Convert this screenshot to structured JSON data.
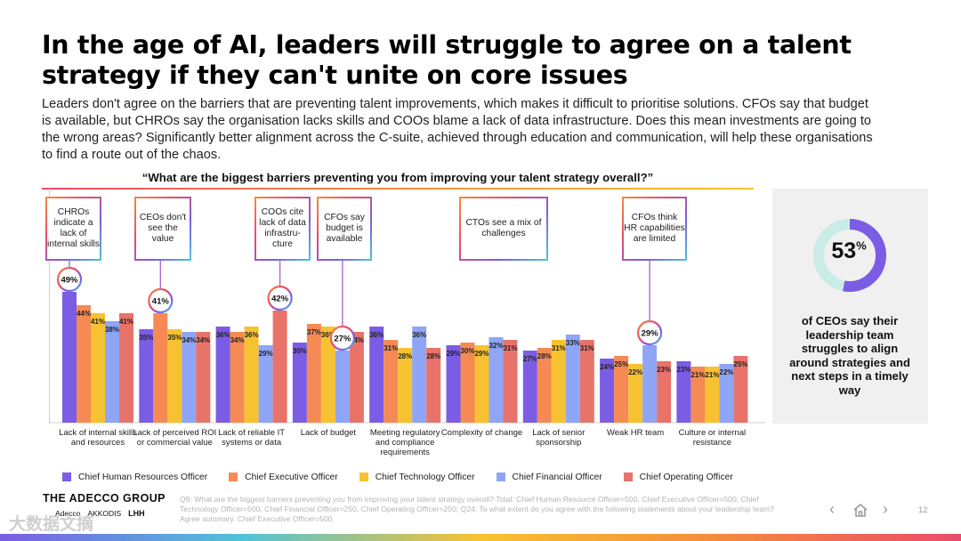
{
  "title": "In the age of AI, leaders will struggle to agree on a talent strategy if they can't unite on core issues",
  "subtitle": "Leaders don't agree on the barriers that are preventing talent improvements, which makes it difficult to prioritise solutions. CFOs say that budget is available, but CHROs say the organisation lacks skills and COOs blame a lack of data infrastructure. Does this mean investments are going to the wrong areas? Significantly better alignment across the C-suite, achieved through education and communication, will help these organisations to find a route out of the chaos.",
  "chart_data": {
    "type": "bar",
    "title": "“What are the biggest barriers preventing you from improving your talent strategy overall?”",
    "categories": [
      "Lack of internal skills and resources",
      "Lack of perceived ROI or commercial value",
      "Lack of reliable IT systems or data",
      "Lack of budget",
      "Meeting regulatory and compliance requirements",
      "Complexity of change",
      "Lack of senior sponsorship",
      "Weak HR team",
      "Culture or internal resistance"
    ],
    "series": [
      {
        "name": "Chief Human Resources Officer",
        "color": "#7b5ce5",
        "values": [
          49,
          35,
          36,
          30,
          36,
          29,
          27,
          24,
          23
        ]
      },
      {
        "name": "Chief Executive Officer",
        "color": "#f58a55",
        "values": [
          44,
          41,
          34,
          37,
          31,
          30,
          28,
          25,
          21
        ]
      },
      {
        "name": "Chief Technology Officer",
        "color": "#f7c232",
        "values": [
          41,
          35,
          36,
          36,
          28,
          29,
          31,
          22,
          21
        ]
      },
      {
        "name": "Chief Financial Officer",
        "color": "#8fa5f5",
        "values": [
          38,
          34,
          29,
          27,
          36,
          32,
          33,
          29,
          22
        ]
      },
      {
        "name": "Chief Operating Officer",
        "color": "#e8736a",
        "values": [
          41,
          34,
          42,
          34,
          28,
          31,
          31,
          23,
          25
        ]
      }
    ],
    "value_suffix": "%",
    "ylim": [
      0,
      55
    ],
    "grid": false,
    "legend": "bottom",
    "highlights": [
      {
        "category_index": 0,
        "series_index": 0
      },
      {
        "category_index": 1,
        "series_index": 1
      },
      {
        "category_index": 2,
        "series_index": 4
      },
      {
        "category_index": 3,
        "series_index": 3
      },
      {
        "category_index": 7,
        "series_index": 3
      }
    ],
    "callouts": [
      {
        "text": "CHROs indicate a lack of internal skills",
        "category_index": 0
      },
      {
        "text": "CEOs don't see the value",
        "category_index": 1
      },
      {
        "text": "COOs cite lack of data infrastru-cture",
        "category_index": 2
      },
      {
        "text": "CFOs say budget is available",
        "category_index": 3
      },
      {
        "text": "CTOs see a mix of challenges",
        "category_index": 5
      },
      {
        "text": "CFOs think HR capabilities are limited",
        "category_index": 7
      }
    ]
  },
  "side_panel": {
    "value": 53,
    "value_text": "53",
    "suffix": "%",
    "text": "of CEOs say their leadership team struggles to align around strategies and next steps in a timely way",
    "ring_color": "#7b5ce5",
    "ring_track_color": "#c9ece8"
  },
  "brand": "THE ADECCO GROUP",
  "sub_brands": [
    "Adecco",
    "AKKODIS",
    "LHH"
  ],
  "footnote": "Q9: What are the biggest barriers preventing you from improving your talent strategy overall? Total: Chief Human Resource Officer=500, Chief Executive Officer=500, Chief Technology Officer=500, Chief Financial Officer=250, Chief Operating Officer=250; Q24: To what extent do you agree with the following statements about your leadership team? Agree summary. Chief Executive Officer=500.",
  "page_number": "12",
  "watermark": "大数据文摘"
}
